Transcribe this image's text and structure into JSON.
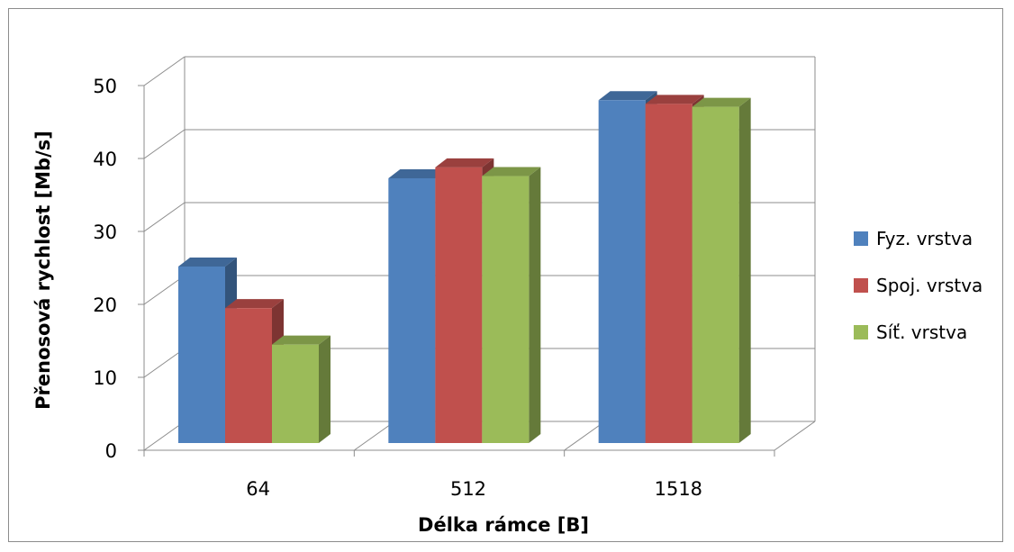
{
  "chart_data": {
    "type": "bar",
    "style": "3d-clustered-column",
    "categories": [
      "64",
      "512",
      "1518"
    ],
    "series": [
      {
        "name": "Fyz. vrstva",
        "color": "#4f81bd",
        "values": [
          24.2,
          36.3,
          47.0
        ]
      },
      {
        "name": "Spoj. vrstva",
        "color": "#c0504d",
        "values": [
          18.5,
          37.8,
          46.5
        ]
      },
      {
        "name": "Síť. vrstva",
        "color": "#9bbb59",
        "values": [
          13.5,
          36.6,
          46.1
        ]
      }
    ],
    "xlabel": "Délka rámce [B]",
    "ylabel": "Přenosová rychlost [Mb/s]",
    "ylim": [
      0,
      50
    ],
    "yticks": [
      "0",
      "10",
      "20",
      "30",
      "40",
      "50"
    ],
    "grid": true,
    "legend_position": "right"
  }
}
